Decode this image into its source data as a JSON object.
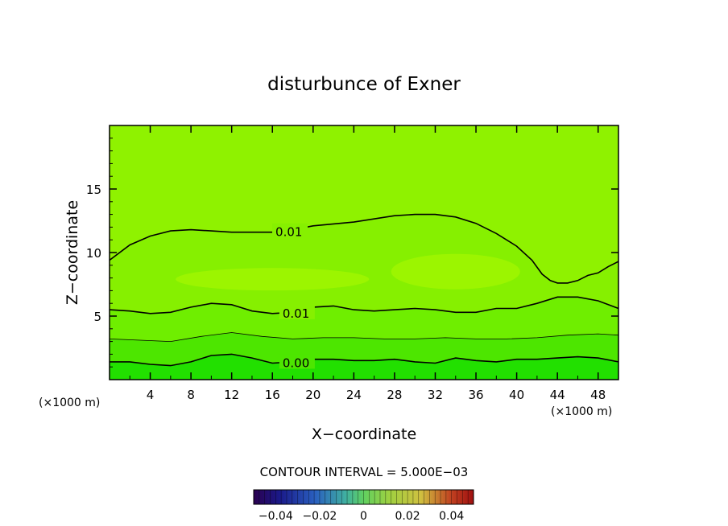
{
  "chart_data": {
    "type": "contour",
    "title": "disturbunce of Exner",
    "xlabel": "X−coordinate",
    "ylabel": "Z−coordinate",
    "x_unit_left": "(×1000 m)",
    "x_unit_right": "(×1000 m)",
    "xlim": [
      0,
      50
    ],
    "ylim": [
      0,
      20
    ],
    "x_ticks": [
      4,
      8,
      12,
      16,
      20,
      24,
      28,
      32,
      36,
      40,
      44,
      48
    ],
    "y_ticks": [
      5,
      10,
      15
    ],
    "contour_interval_text": "CONTOUR INTERVAL = 5.000E−03",
    "colorbar": {
      "range": [
        -0.05,
        0.05
      ],
      "tick_values": [
        -0.04,
        -0.02,
        0,
        0.02,
        0.04
      ],
      "tick_labels": [
        "−0.04",
        "−0.02",
        "0",
        "0.02",
        "0.04"
      ]
    },
    "contour_lines": [
      {
        "label": "0.01",
        "label_at": [
          16.3,
          11.6
        ],
        "points": [
          [
            0,
            9.4
          ],
          [
            2,
            10.6
          ],
          [
            4,
            11.3
          ],
          [
            6,
            11.7
          ],
          [
            8,
            11.8
          ],
          [
            10,
            11.7
          ],
          [
            12,
            11.6
          ],
          [
            14,
            11.6
          ],
          [
            16,
            11.6
          ],
          [
            18,
            11.8
          ],
          [
            20,
            12.1
          ],
          [
            24,
            12.4
          ],
          [
            28,
            12.9
          ],
          [
            30,
            13.0
          ],
          [
            32,
            13.0
          ],
          [
            34,
            12.8
          ],
          [
            36,
            12.3
          ],
          [
            38,
            11.5
          ],
          [
            40,
            10.5
          ],
          [
            41.5,
            9.4
          ],
          [
            42.5,
            8.3
          ],
          [
            43.3,
            7.8
          ],
          [
            44,
            7.6
          ],
          [
            45,
            7.6
          ],
          [
            46,
            7.8
          ],
          [
            47,
            8.2
          ],
          [
            48,
            8.4
          ],
          [
            49,
            8.9
          ],
          [
            50,
            9.3
          ]
        ]
      },
      {
        "label": "0.01",
        "label_at": [
          17,
          5.2
        ],
        "points": [
          [
            0,
            5.5
          ],
          [
            2,
            5.4
          ],
          [
            4,
            5.2
          ],
          [
            6,
            5.3
          ],
          [
            8,
            5.7
          ],
          [
            10,
            6.0
          ],
          [
            12,
            5.9
          ],
          [
            14,
            5.4
          ],
          [
            16,
            5.2
          ],
          [
            18,
            5.3
          ],
          [
            20,
            5.7
          ],
          [
            22,
            5.8
          ],
          [
            24,
            5.5
          ],
          [
            26,
            5.4
          ],
          [
            28,
            5.5
          ],
          [
            30,
            5.6
          ],
          [
            32,
            5.5
          ],
          [
            34,
            5.3
          ],
          [
            36,
            5.3
          ],
          [
            38,
            5.6
          ],
          [
            40,
            5.6
          ],
          [
            42,
            6.0
          ],
          [
            44,
            6.5
          ],
          [
            46,
            6.5
          ],
          [
            48,
            6.2
          ],
          [
            50,
            5.6
          ]
        ]
      },
      {
        "label": "",
        "label_at": null,
        "points": [
          [
            0,
            3.2
          ],
          [
            3,
            3.1
          ],
          [
            6,
            3.0
          ],
          [
            9,
            3.4
          ],
          [
            12,
            3.7
          ],
          [
            15,
            3.4
          ],
          [
            18,
            3.2
          ],
          [
            21,
            3.3
          ],
          [
            24,
            3.3
          ],
          [
            27,
            3.2
          ],
          [
            30,
            3.2
          ],
          [
            33,
            3.3
          ],
          [
            36,
            3.2
          ],
          [
            39,
            3.2
          ],
          [
            42,
            3.3
          ],
          [
            45,
            3.5
          ],
          [
            48,
            3.6
          ],
          [
            50,
            3.5
          ]
        ]
      },
      {
        "label": "0.00",
        "label_at": [
          17,
          1.3
        ],
        "points": [
          [
            0,
            1.4
          ],
          [
            2,
            1.4
          ],
          [
            4,
            1.2
          ],
          [
            6,
            1.1
          ],
          [
            8,
            1.4
          ],
          [
            10,
            1.9
          ],
          [
            12,
            2.0
          ],
          [
            14,
            1.7
          ],
          [
            16,
            1.3
          ],
          [
            18,
            1.4
          ],
          [
            20,
            1.6
          ],
          [
            22,
            1.6
          ],
          [
            24,
            1.5
          ],
          [
            26,
            1.5
          ],
          [
            28,
            1.6
          ],
          [
            30,
            1.4
          ],
          [
            32,
            1.3
          ],
          [
            34,
            1.7
          ],
          [
            36,
            1.5
          ],
          [
            38,
            1.4
          ],
          [
            40,
            1.6
          ],
          [
            42,
            1.6
          ],
          [
            44,
            1.7
          ],
          [
            46,
            1.8
          ],
          [
            48,
            1.7
          ],
          [
            50,
            1.4
          ]
        ]
      }
    ],
    "colors": {
      "fill_band_lowest": "#22e000",
      "fill_band_low": "#4de600",
      "fill_band_mid": "#6fee00",
      "fill_band_main": "#86f000",
      "fill_band_high": "#8ff200",
      "fill_blob": "#9cf500"
    }
  }
}
